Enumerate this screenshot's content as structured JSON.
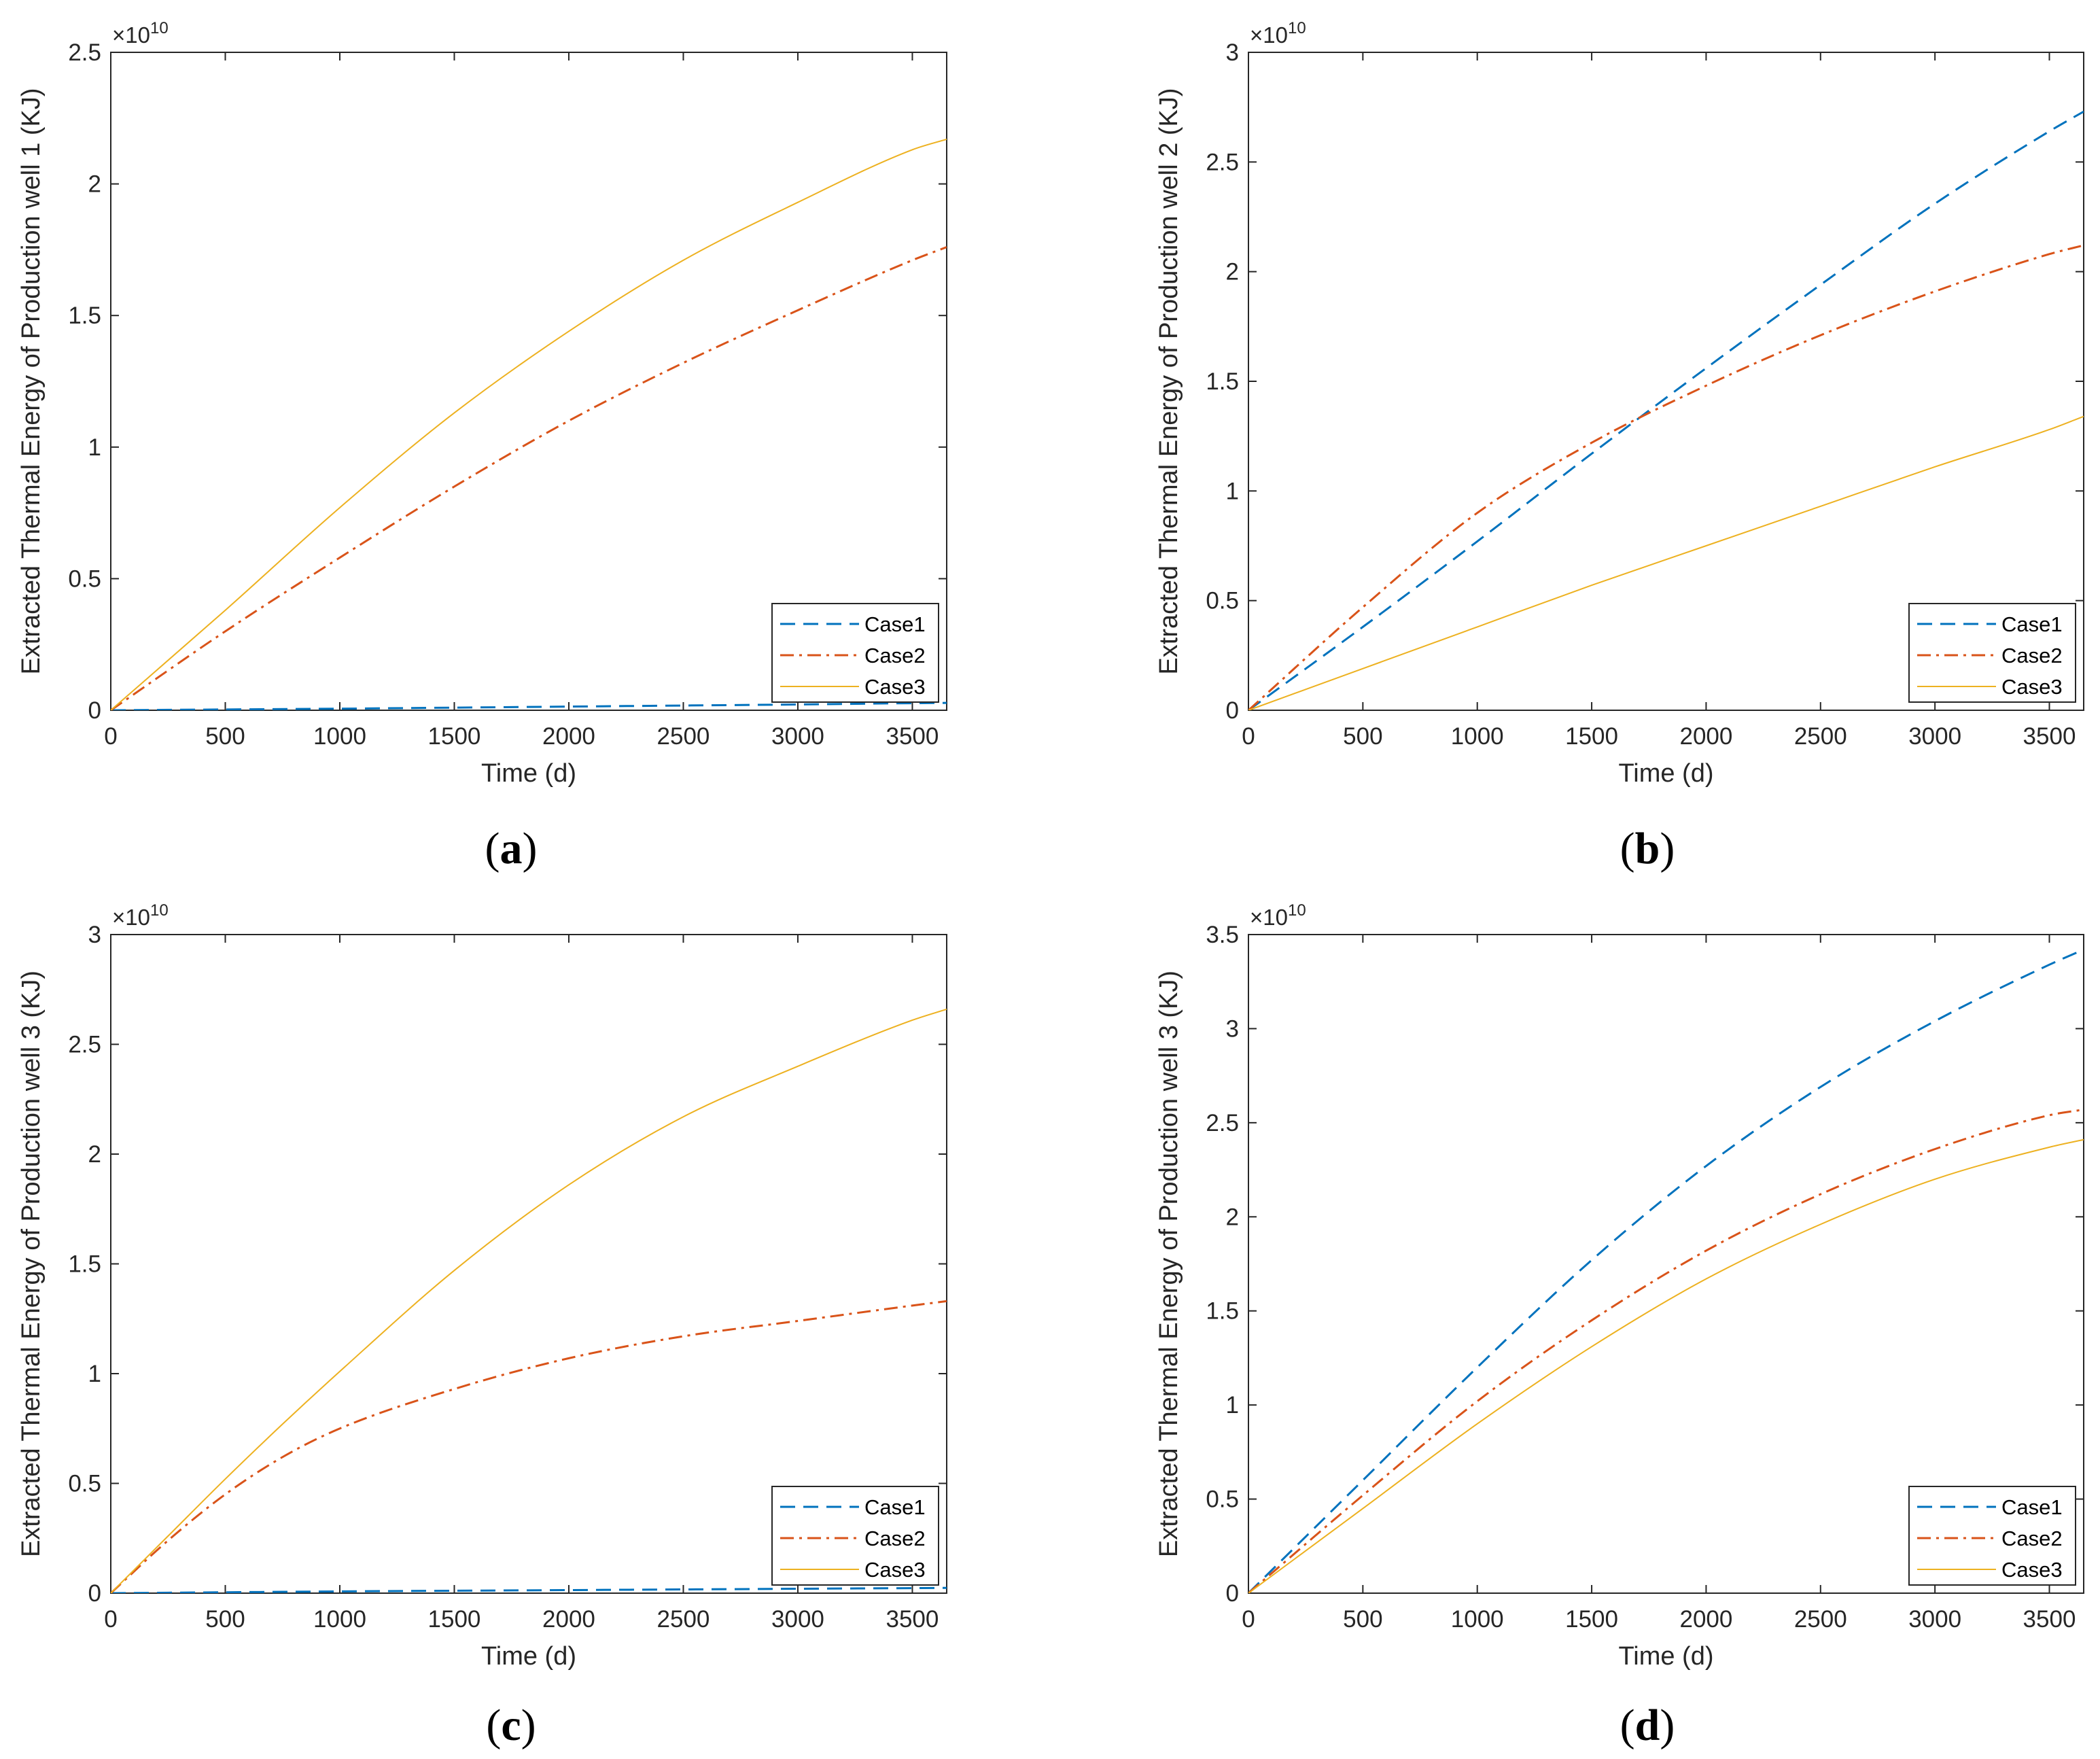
{
  "figure": {
    "colors": {
      "case1": "#0072BD",
      "case2": "#D95319",
      "case3": "#EDB120",
      "axis": "#262626"
    },
    "exponent": "×10",
    "exponent_power": "10",
    "legend_names": [
      "Case1",
      "Case2",
      "Case3"
    ]
  },
  "chart_data": [
    {
      "type": "line",
      "panel_label": "a",
      "title": "",
      "xlabel": "Time (d)",
      "ylabel": "Extracted Thermal Energy of Production well 1 (KJ)",
      "xlim": [
        0,
        3650
      ],
      "ylim": [
        0,
        2.5
      ],
      "xticks": [
        0,
        500,
        1000,
        1500,
        2000,
        2500,
        3000,
        3500
      ],
      "xtick_labels": [
        "0",
        "500",
        "1000",
        "1500",
        "2000",
        "2500",
        "3000",
        "3500"
      ],
      "yticks": [
        0,
        0.5,
        1,
        1.5,
        2,
        2.5
      ],
      "ytick_labels": [
        "0",
        "0.5",
        "1",
        "1.5",
        "2",
        "2.5"
      ],
      "y_multiplier": "×10^10",
      "legend_position": "bottom-right",
      "x": [
        0,
        500,
        1000,
        1500,
        2000,
        2500,
        3000,
        3500,
        3650
      ],
      "series": [
        {
          "name": "Case1",
          "values": [
            0,
            0.003,
            0.006,
            0.01,
            0.014,
            0.018,
            0.022,
            0.027,
            0.028
          ]
        },
        {
          "name": "Case2",
          "values": [
            0,
            0.3,
            0.58,
            0.85,
            1.1,
            1.32,
            1.52,
            1.71,
            1.76
          ]
        },
        {
          "name": "Case3",
          "values": [
            0,
            0.38,
            0.77,
            1.13,
            1.44,
            1.71,
            1.93,
            2.13,
            2.17
          ]
        }
      ]
    },
    {
      "type": "line",
      "panel_label": "b",
      "title": "",
      "xlabel": "Time (d)",
      "ylabel": "Extracted Thermal Energy of Production well 2 (KJ)",
      "xlim": [
        0,
        3650
      ],
      "ylim": [
        0,
        3
      ],
      "xticks": [
        0,
        500,
        1000,
        1500,
        2000,
        2500,
        3000,
        3500
      ],
      "xtick_labels": [
        "0",
        "500",
        "1000",
        "1500",
        "2000",
        "2500",
        "3000",
        "3500"
      ],
      "yticks": [
        0,
        0.5,
        1,
        1.5,
        2,
        2.5,
        3
      ],
      "ytick_labels": [
        "0",
        "0.5",
        "1",
        "1.5",
        "2",
        "2.5",
        "3"
      ],
      "y_multiplier": "×10^10",
      "legend_position": "bottom-right",
      "x": [
        0,
        500,
        1000,
        1500,
        2000,
        2500,
        3000,
        3500,
        3650
      ],
      "series": [
        {
          "name": "Case1",
          "values": [
            0,
            0.38,
            0.77,
            1.17,
            1.56,
            1.94,
            2.31,
            2.64,
            2.73
          ]
        },
        {
          "name": "Case2",
          "values": [
            0,
            0.47,
            0.9,
            1.22,
            1.48,
            1.71,
            1.91,
            2.08,
            2.12
          ]
        },
        {
          "name": "Case3",
          "values": [
            0,
            0.19,
            0.38,
            0.57,
            0.75,
            0.93,
            1.11,
            1.28,
            1.34
          ]
        }
      ]
    },
    {
      "type": "line",
      "panel_label": "c",
      "title": "",
      "xlabel": "Time (d)",
      "ylabel": "Extracted Thermal Energy of Production well 3 (KJ)",
      "xlim": [
        0,
        3650
      ],
      "ylim": [
        0,
        3
      ],
      "xticks": [
        0,
        500,
        1000,
        1500,
        2000,
        2500,
        3000,
        3500
      ],
      "xtick_labels": [
        "0",
        "500",
        "1000",
        "1500",
        "2000",
        "2500",
        "3000",
        "3500"
      ],
      "yticks": [
        0,
        0.5,
        1,
        1.5,
        2,
        2.5,
        3
      ],
      "ytick_labels": [
        "0",
        "0.5",
        "1",
        "1.5",
        "2",
        "2.5",
        "3"
      ],
      "y_multiplier": "×10^10",
      "legend_position": "bottom-right",
      "x": [
        0,
        250,
        500,
        750,
        1000,
        1500,
        2000,
        2500,
        3000,
        3500,
        3650
      ],
      "series": [
        {
          "name": "Case1",
          "values": [
            0,
            0.002,
            0.004,
            0.006,
            0.008,
            0.011,
            0.014,
            0.017,
            0.02,
            0.023,
            0.024
          ]
        },
        {
          "name": "Case2",
          "values": [
            0,
            0.24,
            0.45,
            0.62,
            0.75,
            0.93,
            1.07,
            1.17,
            1.24,
            1.31,
            1.33
          ]
        },
        {
          "name": "Case3",
          "values": [
            0,
            0.26,
            0.52,
            0.77,
            1.01,
            1.47,
            1.86,
            2.17,
            2.4,
            2.61,
            2.66
          ]
        }
      ]
    },
    {
      "type": "line",
      "panel_label": "d",
      "title": "",
      "xlabel": "Time (d)",
      "ylabel": "Extracted Thermal Energy of Production well 3 (KJ)",
      "xlim": [
        0,
        3650
      ],
      "ylim": [
        0,
        3.5
      ],
      "xticks": [
        0,
        500,
        1000,
        1500,
        2000,
        2500,
        3000,
        3500
      ],
      "xtick_labels": [
        "0",
        "500",
        "1000",
        "1500",
        "2000",
        "2500",
        "3000",
        "3500"
      ],
      "yticks": [
        0,
        0.5,
        1,
        1.5,
        2,
        2.5,
        3,
        3.5
      ],
      "ytick_labels": [
        "0",
        "0.5",
        "1",
        "1.5",
        "2",
        "2.5",
        "3",
        "3.5"
      ],
      "y_multiplier": "×10^10",
      "legend_position": "bottom-right",
      "x": [
        0,
        500,
        1000,
        1500,
        2000,
        2500,
        3000,
        3500,
        3650
      ],
      "series": [
        {
          "name": "Case1",
          "values": [
            0,
            0.6,
            1.2,
            1.77,
            2.27,
            2.69,
            3.04,
            3.34,
            3.42
          ]
        },
        {
          "name": "Case2",
          "values": [
            0,
            0.52,
            1.02,
            1.45,
            1.82,
            2.12,
            2.36,
            2.54,
            2.57
          ]
        },
        {
          "name": "Case3",
          "values": [
            0,
            0.45,
            0.9,
            1.31,
            1.67,
            1.96,
            2.2,
            2.37,
            2.41
          ]
        }
      ]
    }
  ]
}
